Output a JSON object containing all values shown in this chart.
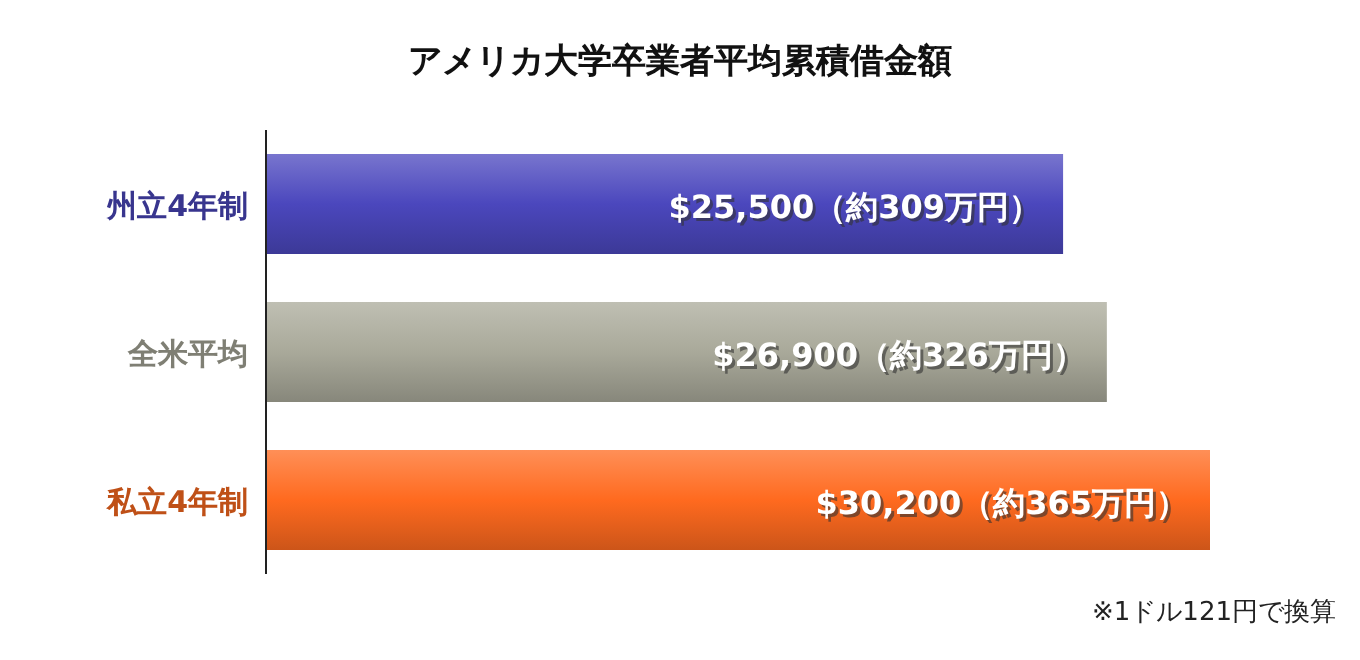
{
  "chart_data": {
    "type": "bar",
    "orientation": "horizontal",
    "title": "アメリカ大学卒業者平均累積借金額",
    "categories": [
      "州立4年制",
      "全米平均",
      "私立4年制"
    ],
    "values": [
      25500,
      26900,
      30200
    ],
    "colors": [
      "#4b47bd",
      "#a9a99a",
      "#ff6a1f"
    ],
    "value_labels": [
      "$25,500（約309万円）",
      "$26,900（約326万円）",
      "$30,200（約365万円）"
    ],
    "annotations": [
      "※1ドル121円で換算"
    ]
  }
}
